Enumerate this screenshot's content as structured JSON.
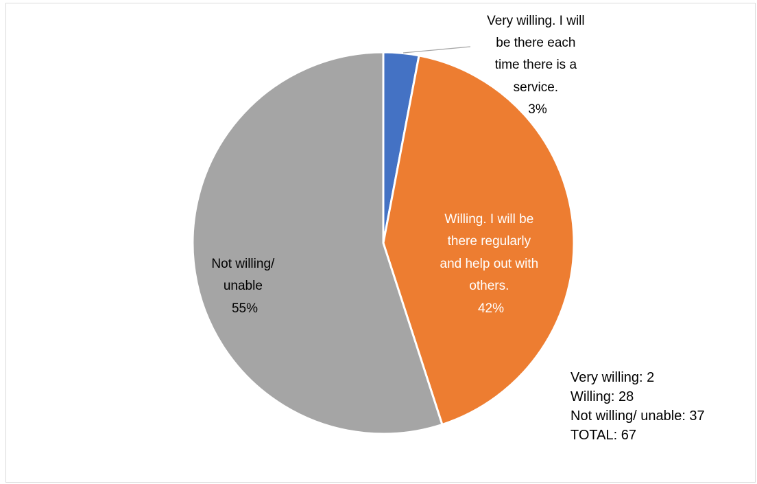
{
  "chart_data": {
    "type": "pie",
    "title": "",
    "slices": [
      {
        "name": "Very willing. I will be there each time there is a service.",
        "label_lines": [
          "Very willing. I will",
          "be there each",
          "time there is a",
          "service."
        ],
        "percent_label": "3%",
        "value": 3,
        "color": "#4472C4"
      },
      {
        "name": "Willing. I will be there regularly and help out with others.",
        "label_lines": [
          "Willing. I will be",
          "there regularly",
          "and help out with",
          "others."
        ],
        "percent_label": "42%",
        "value": 42,
        "color": "#ED7D31"
      },
      {
        "name": "Not willing/ unable",
        "label_lines": [
          "Not willing/",
          "unable"
        ],
        "percent_label": "55%",
        "value": 55,
        "color": "#A5A5A5"
      }
    ],
    "annotation_lines": [
      "Very willing: 2",
      "Willing: 28",
      "Not willing/ unable: 37",
      "TOTAL: 67"
    ]
  }
}
